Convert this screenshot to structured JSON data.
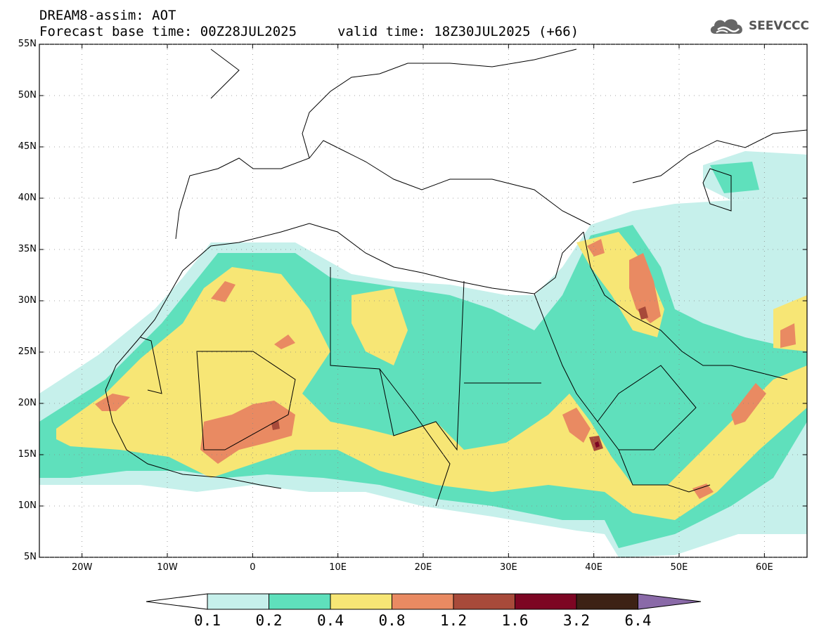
{
  "header": {
    "model": "DREAM8-assim: AOT",
    "base_time": "Forecast base time: 00Z28JUL2025",
    "valid_time": "valid time: 18Z30JUL2025 (+66)"
  },
  "logo": {
    "text": "SEEVCCC",
    "icon": "cloud-icon"
  },
  "map": {
    "lon_range": [
      -25,
      65
    ],
    "lat_range": [
      5,
      55
    ],
    "lat_ticks": [
      "55N",
      "50N",
      "45N",
      "40N",
      "35N",
      "30N",
      "25N",
      "20N",
      "15N",
      "10N",
      "5N"
    ],
    "lon_ticks": [
      "20W",
      "10W",
      "0",
      "10E",
      "20E",
      "30E",
      "40E",
      "50E",
      "60E"
    ]
  },
  "legend": {
    "labels": [
      "0.1",
      "0.2",
      "0.4",
      "0.8",
      "1.2",
      "1.6",
      "3.2",
      "6.4"
    ],
    "colors": [
      "#ffffff",
      "#c6f0eb",
      "#5fe0bc",
      "#f7e675",
      "#e98a62",
      "#a84a3a",
      "#7d0623",
      "#3d2215",
      "#8a6aa8"
    ]
  },
  "colors": {
    "bin1": "#c6f0eb",
    "bin2": "#5fe0bc",
    "bin3": "#f7e675",
    "bin4": "#e98a62",
    "bin5": "#a84a3a",
    "bin6": "#7d0623"
  }
}
